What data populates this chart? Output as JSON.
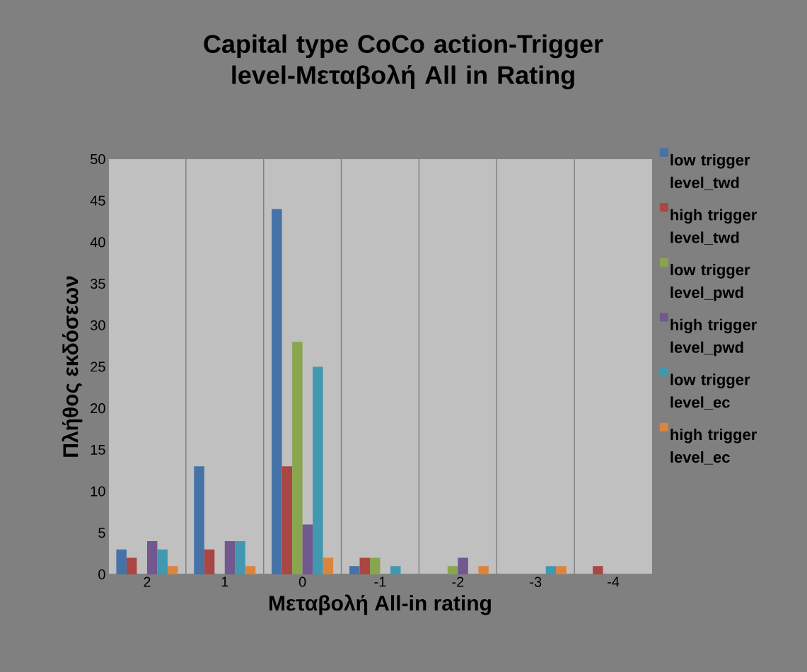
{
  "chart_data": {
    "type": "bar",
    "title": "Capital type CoCo action-Trigger level-Μεταβολή All in Rating",
    "xlabel": "Μεταβολή All-in rating",
    "ylabel": "Πλήθος εκδόσεων",
    "categories": [
      "2",
      "1",
      "0",
      "-1",
      "-2",
      "-3",
      "-4"
    ],
    "series": [
      {
        "name": "low trigger level_twd",
        "color": "#4572a7",
        "values": [
          3,
          13,
          44,
          1,
          0,
          0,
          0
        ]
      },
      {
        "name": "high trigger level_twd",
        "color": "#aa4643",
        "values": [
          2,
          3,
          13,
          2,
          0,
          0,
          1
        ]
      },
      {
        "name": "low trigger level_pwd",
        "color": "#89a54e",
        "values": [
          0,
          0,
          28,
          2,
          1,
          0,
          0
        ]
      },
      {
        "name": "high trigger level_pwd",
        "color": "#71588f",
        "values": [
          4,
          4,
          6,
          0,
          2,
          0,
          0
        ]
      },
      {
        "name": "low trigger level_ec",
        "color": "#4198af",
        "values": [
          3,
          4,
          25,
          1,
          0,
          1,
          0
        ]
      },
      {
        "name": "high trigger level_ec",
        "color": "#db843d",
        "values": [
          1,
          1,
          2,
          0,
          1,
          1,
          0
        ]
      }
    ],
    "ylim": [
      0,
      50
    ],
    "yticks": [
      0,
      5,
      10,
      15,
      20,
      25,
      30,
      35,
      40,
      45,
      50
    ],
    "grid": "x",
    "legend": "right"
  }
}
